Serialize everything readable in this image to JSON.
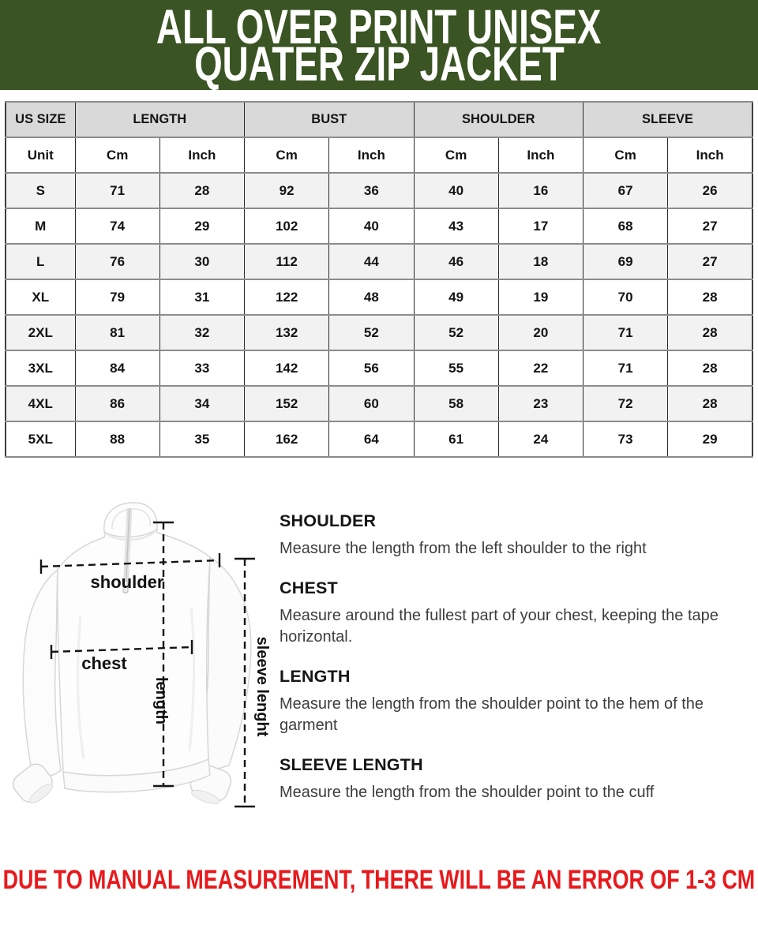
{
  "page": {
    "title_line1": "ALL OVER PRINT UNISEX",
    "title_line2": "QUATER ZIP JACKET",
    "footer_note": "DUE TO MANUAL MEASUREMENT, THERE WILL BE AN ERROR OF 1-3 CM"
  },
  "colors": {
    "header_green": "#3a5423",
    "footer_red": "#e8191c",
    "table_header_bg": "#d9d9d9",
    "table_alt_row_bg": "#f2f2f2"
  },
  "size_table": {
    "groups": [
      {
        "label": "US SIZE",
        "span": 1
      },
      {
        "label": "LENGTH",
        "span": 2
      },
      {
        "label": "BUST",
        "span": 2
      },
      {
        "label": "SHOULDER",
        "span": 2
      },
      {
        "label": "SLEEVE",
        "span": 2
      }
    ],
    "unit_row": [
      "Unit",
      "Cm",
      "Inch",
      "Cm",
      "Inch",
      "Cm",
      "Inch",
      "Cm",
      "Inch"
    ],
    "rows": [
      [
        "S",
        "71",
        "28",
        "92",
        "36",
        "40",
        "16",
        "67",
        "26"
      ],
      [
        "M",
        "74",
        "29",
        "102",
        "40",
        "43",
        "17",
        "68",
        "27"
      ],
      [
        "L",
        "76",
        "30",
        "112",
        "44",
        "46",
        "18",
        "69",
        "27"
      ],
      [
        "XL",
        "79",
        "31",
        "122",
        "48",
        "49",
        "19",
        "70",
        "28"
      ],
      [
        "2XL",
        "81",
        "32",
        "132",
        "52",
        "52",
        "20",
        "71",
        "28"
      ],
      [
        "3XL",
        "84",
        "33",
        "142",
        "56",
        "55",
        "22",
        "71",
        "28"
      ],
      [
        "4XL",
        "86",
        "34",
        "152",
        "60",
        "58",
        "23",
        "72",
        "28"
      ],
      [
        "5XL",
        "88",
        "35",
        "162",
        "64",
        "61",
        "24",
        "73",
        "29"
      ]
    ]
  },
  "diagram": {
    "labels": {
      "shoulder": "shoulder",
      "chest": "chest",
      "length": "length",
      "sleeve_length": "sleeve lenght"
    }
  },
  "instructions": [
    {
      "heading": "SHOULDER",
      "body": "Measure the length from the left shoulder to the right"
    },
    {
      "heading": "CHEST",
      "body": "Measure around the fullest part of your chest, keeping the tape horizontal."
    },
    {
      "heading": "LENGTH",
      "body": "Measure the length from the shoulder point to the hem of the garment"
    },
    {
      "heading": "SLEEVE LENGTH",
      "body": "Measure the length from the shoulder point to the cuff"
    }
  ]
}
